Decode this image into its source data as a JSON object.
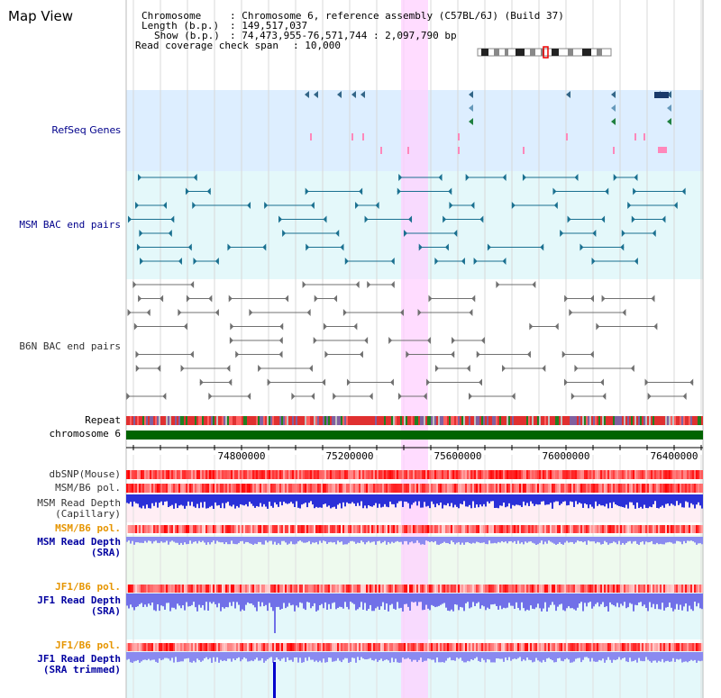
{
  "app": {
    "title": "Map View"
  },
  "header": {
    "chromosome_label": "Chromosome",
    "chromosome_value": ": Chromosome 6, reference assembly (C57BL/6J) (Build 37)",
    "length_label": "Length (b.p.)",
    "length_value": ": 149,517,037",
    "show_label": "Show (b.p.)",
    "show_value": ": 74,473,955-76,571,744 : 2,097,790 bp",
    "coverage_label": "Read coverage check span",
    "coverage_value": ": 10,000"
  },
  "tracks": {
    "refseq": "RefSeq Genes",
    "msm_bac": "MSM BAC end pairs",
    "b6n_bac": "B6N BAC end pairs",
    "repeat": "Repeat",
    "chromosome": "chromosome 6",
    "dbsnp": "dbSNP(Mouse)",
    "msm_b6_pol_1": "MSM/B6 pol.",
    "msm_depth_cap": "MSM Read Depth\n(Capillary)",
    "msm_b6_pol_2": "MSM/B6 pol.",
    "msm_depth_sra": "MSM Read Depth\n(SRA)",
    "jf1_b6_pol_1": "JF1/B6 pol.",
    "jf1_depth_sra": "JF1 Read Depth\n(SRA)",
    "jf1_b6_pol_2": "JF1/B6 pol.",
    "jf1_depth_trim": "JF1 Read Depth\n(SRA trimmed)"
  },
  "axis": {
    "ticks": [
      "74800000",
      "75200000",
      "75600000",
      "76000000",
      "76400000"
    ]
  },
  "colors": {
    "refseq_bg": "#ddeeff",
    "msm_bg": "#e4f8fa",
    "highlight": "#ffd0ff",
    "chromosome_bar": "#006400",
    "depth_blue": "#2020e0",
    "depth_light": "#8888ee"
  }
}
